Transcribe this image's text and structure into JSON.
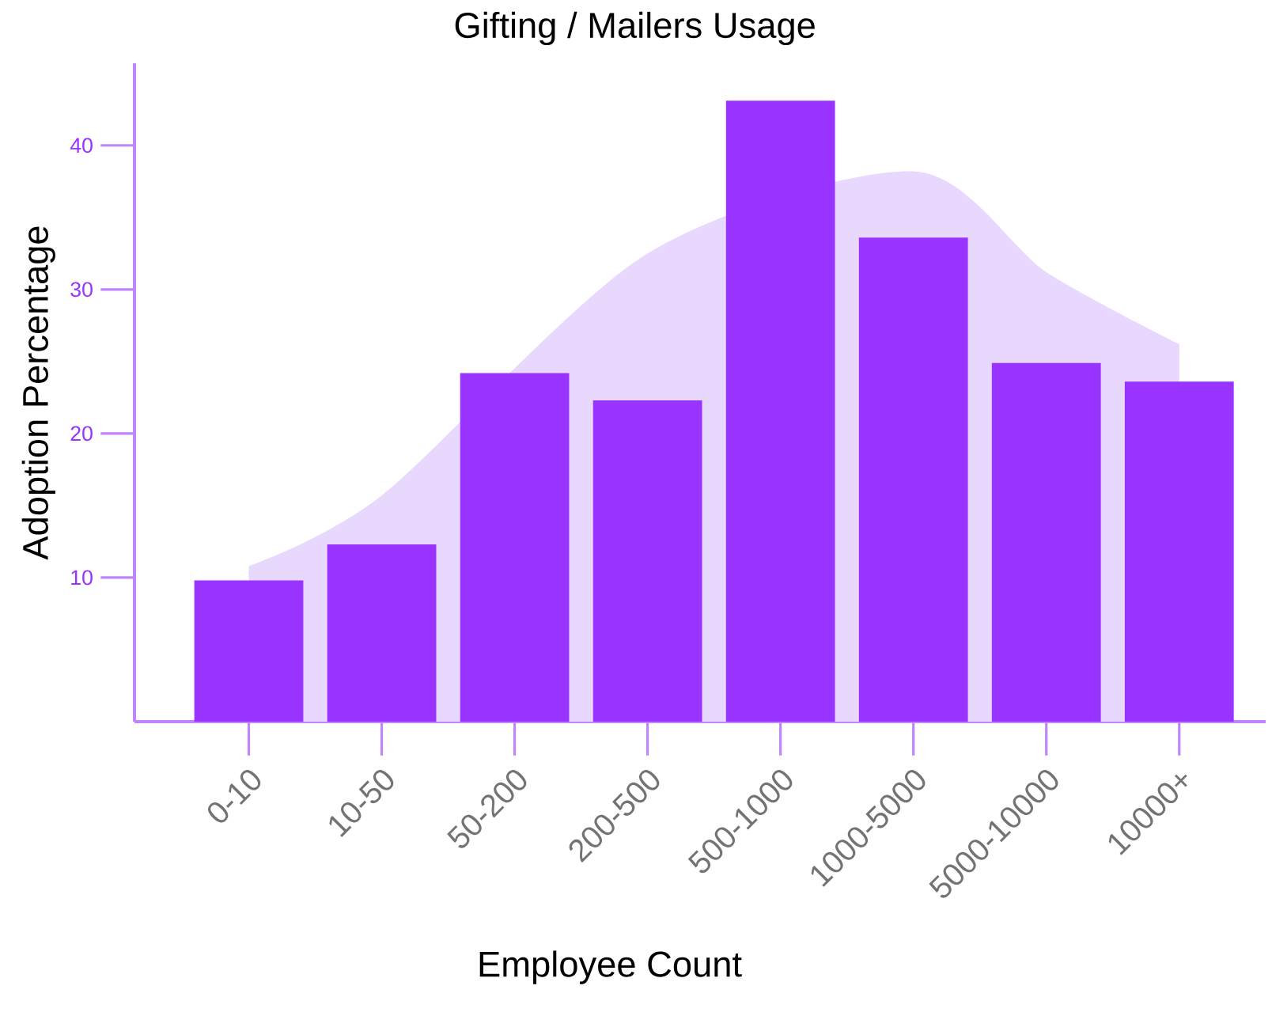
{
  "chart_data": {
    "type": "bar",
    "title": "Gifting / Mailers Usage",
    "xlabel": "Employee Count",
    "ylabel": "Adoption Percentage",
    "categories": [
      "0-10",
      "10-50",
      "50-200",
      "200-500",
      "500-1000",
      "1000-5000",
      "5000-10000",
      "10000+"
    ],
    "series": [
      {
        "type": "area",
        "color": "#e9d8fd",
        "values": [
          10.8,
          15.7,
          null,
          32.5,
          null,
          38.2,
          31.2,
          26.2
        ]
      },
      {
        "color": "#9933ff",
        "values": [
          9.8,
          12.3,
          24.2,
          22.3,
          43.1,
          33.6,
          24.9,
          23.6
        ]
      }
    ],
    "ylim": [
      0,
      45.7
    ],
    "yticks": [
      10,
      20,
      30,
      40
    ],
    "grid": false
  }
}
